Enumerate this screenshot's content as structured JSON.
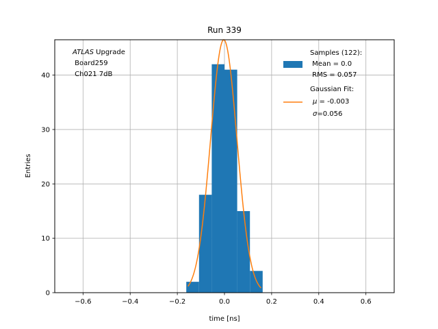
{
  "chart_data": {
    "type": "bar",
    "title": "Run 339",
    "xlabel": "time [ns]",
    "ylabel": "Entries",
    "xlim": [
      -0.72,
      0.72
    ],
    "ylim": [
      0,
      46.5
    ],
    "xticks": [
      -0.6,
      -0.4,
      -0.2,
      0.0,
      0.2,
      0.4,
      0.6
    ],
    "xtick_labels": [
      "−0.6",
      "−0.4",
      "−0.2",
      "0.0",
      "0.2",
      "0.4",
      "0.6"
    ],
    "yticks": [
      0,
      10,
      20,
      30,
      40
    ],
    "ytick_labels": [
      "0",
      "10",
      "20",
      "30",
      "40"
    ],
    "grid": true,
    "legend_position": "top-right",
    "histogram": {
      "bin_edges": [
        -0.162,
        -0.108,
        -0.054,
        0.0,
        0.054,
        0.108,
        0.162
      ],
      "counts": [
        2,
        18,
        42,
        41,
        15,
        4
      ],
      "color": "#1f77b4"
    },
    "gaussian_fit": {
      "mu": -0.003,
      "sigma": 0.056,
      "amplitude": 46.5,
      "x_range": [
        -0.155,
        0.155
      ],
      "color": "#ff7f0e"
    },
    "annotation": {
      "line1_italic": "ATLAS",
      "line1_rest": " Upgrade",
      "line2": " Board259",
      "line3": " Ch021 7dB"
    },
    "legend": {
      "hist_line1": "Samples (122):",
      "hist_line2": " Mean = 0.0",
      "hist_line3": " RMS = 0.057",
      "fit_line1": "Gaussian Fit:",
      "fit_line2_symbol": "μ",
      "fit_line2_rest": " = -0.003",
      "fit_line3_symbol": "σ",
      "fit_line3_rest": "=0.056"
    }
  }
}
